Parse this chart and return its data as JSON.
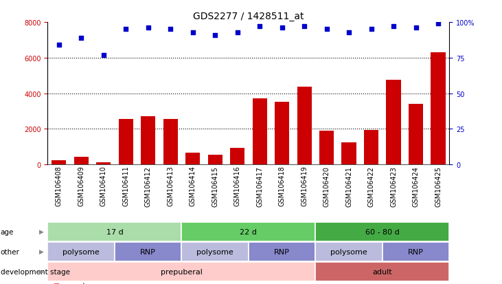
{
  "title": "GDS2277 / 1428511_at",
  "samples": [
    "GSM106408",
    "GSM106409",
    "GSM106410",
    "GSM106411",
    "GSM106412",
    "GSM106413",
    "GSM106414",
    "GSM106415",
    "GSM106416",
    "GSM106417",
    "GSM106418",
    "GSM106419",
    "GSM106420",
    "GSM106421",
    "GSM106422",
    "GSM106423",
    "GSM106424",
    "GSM106425"
  ],
  "counts": [
    230,
    420,
    130,
    2550,
    2720,
    2570,
    680,
    560,
    920,
    3700,
    3520,
    4380,
    1900,
    1260,
    1950,
    4750,
    3400,
    6300
  ],
  "percentiles": [
    84,
    89,
    77,
    95,
    96,
    95,
    93,
    91,
    93,
    97,
    96,
    97,
    95,
    93,
    95,
    97,
    96,
    99
  ],
  "count_color": "#cc0000",
  "percentile_color": "#0000cc",
  "bar_color": "#cc0000",
  "dot_color": "#0000cc",
  "ylim_left": [
    0,
    8000
  ],
  "ylim_right": [
    0,
    100
  ],
  "yticks_left": [
    0,
    2000,
    4000,
    6000,
    8000
  ],
  "yticks_right": [
    0,
    25,
    50,
    75,
    100
  ],
  "grid_values": [
    2000,
    4000,
    6000
  ],
  "age_groups": [
    {
      "label": "17 d",
      "start": 0,
      "end": 6,
      "color": "#aaddaa"
    },
    {
      "label": "22 d",
      "start": 6,
      "end": 12,
      "color": "#66cc66"
    },
    {
      "label": "60 - 80 d",
      "start": 12,
      "end": 18,
      "color": "#44aa44"
    }
  ],
  "other_groups": [
    {
      "label": "polysome",
      "start": 0,
      "end": 3,
      "color": "#bbbbdd"
    },
    {
      "label": "RNP",
      "start": 3,
      "end": 6,
      "color": "#8888cc"
    },
    {
      "label": "polysome",
      "start": 6,
      "end": 9,
      "color": "#bbbbdd"
    },
    {
      "label": "RNP",
      "start": 9,
      "end": 12,
      "color": "#8888cc"
    },
    {
      "label": "polysome",
      "start": 12,
      "end": 15,
      "color": "#bbbbdd"
    },
    {
      "label": "RNP",
      "start": 15,
      "end": 18,
      "color": "#8888cc"
    }
  ],
  "dev_groups": [
    {
      "label": "prepuberal",
      "start": 0,
      "end": 12,
      "color": "#ffcccc"
    },
    {
      "label": "adult",
      "start": 12,
      "end": 18,
      "color": "#cc6666"
    }
  ],
  "row_labels": [
    "age",
    "other",
    "development stage"
  ],
  "title_fontsize": 10,
  "tick_fontsize": 7,
  "annot_fontsize": 8,
  "legend_fontsize": 7.5
}
